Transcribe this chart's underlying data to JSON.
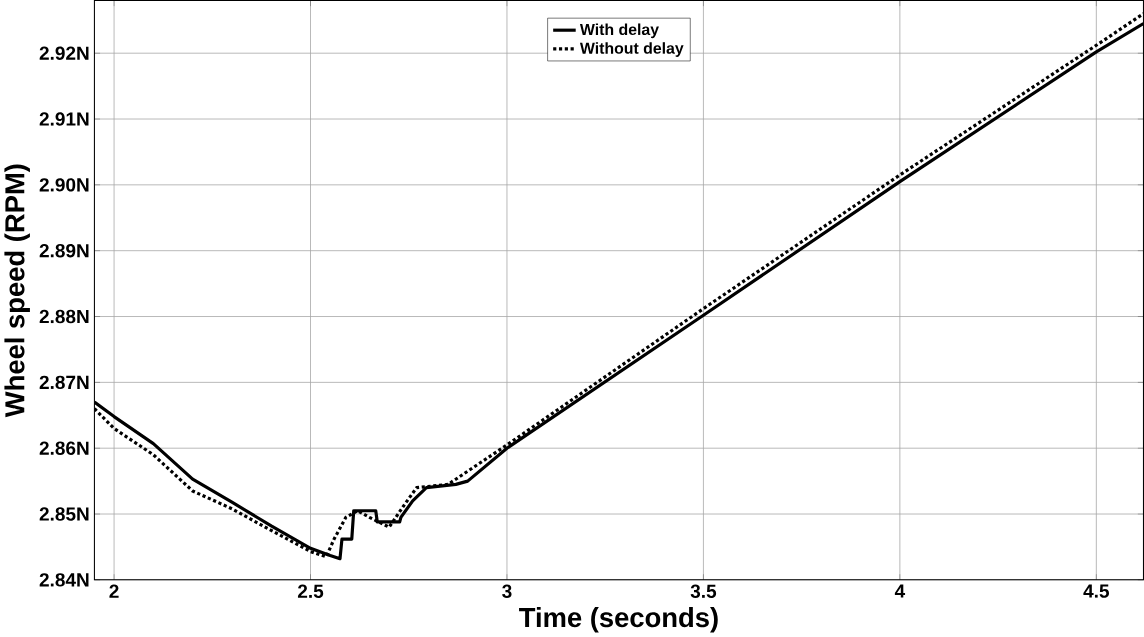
{
  "chart_data": {
    "type": "line",
    "xlabel": "Time (seconds)",
    "ylabel": "Wheel speed (RPM)",
    "xlim": [
      1.95,
      4.62
    ],
    "ylim": [
      2.84,
      2.928
    ],
    "xticks": [
      2,
      2.5,
      3,
      3.5,
      4,
      4.5
    ],
    "yticks": [
      {
        "value": 2.84,
        "label": "2.84N"
      },
      {
        "value": 2.85,
        "label": "2.85N"
      },
      {
        "value": 2.86,
        "label": "2.86N"
      },
      {
        "value": 2.87,
        "label": "2.87N"
      },
      {
        "value": 2.88,
        "label": "2.88N"
      },
      {
        "value": 2.89,
        "label": "2.89N"
      },
      {
        "value": 2.9,
        "label": "2.90N"
      },
      {
        "value": 2.91,
        "label": "2.91N"
      },
      {
        "value": 2.92,
        "label": "2.92N"
      }
    ],
    "grid": true,
    "legend": "top",
    "series": [
      {
        "name": "With delay",
        "color": "#000000",
        "line_style": "solid",
        "x": [
          1.95,
          2.0,
          2.1,
          2.2,
          2.3,
          2.4,
          2.5,
          2.55,
          2.575,
          2.58,
          2.605,
          2.61,
          2.666,
          2.67,
          2.727,
          2.73,
          2.76,
          2.795,
          2.87,
          2.9,
          3.0,
          3.5,
          4.0,
          4.5,
          4.62
        ],
        "values": [
          2.867,
          2.8648,
          2.8607,
          2.8553,
          2.8518,
          2.8482,
          2.8448,
          2.8437,
          2.8432,
          2.8462,
          2.8462,
          2.8505,
          2.8505,
          2.8488,
          2.8488,
          2.8495,
          2.852,
          2.854,
          2.8545,
          2.855,
          2.86,
          2.8802,
          2.9005,
          2.9202,
          2.9245
        ]
      },
      {
        "name": "Without delay",
        "color": "#000000",
        "line_style": "dotted",
        "x": [
          1.95,
          2.0,
          2.1,
          2.2,
          2.3,
          2.4,
          2.5,
          2.54,
          2.56,
          2.59,
          2.62,
          2.65,
          2.7,
          2.74,
          2.77,
          2.85,
          2.9,
          3.0,
          3.5,
          4.0,
          4.5,
          4.62
        ],
        "values": [
          2.866,
          2.863,
          2.859,
          2.8535,
          2.8508,
          2.8475,
          2.8443,
          2.8435,
          2.8462,
          2.8495,
          2.8505,
          2.8495,
          2.848,
          2.8515,
          2.854,
          2.8545,
          2.8565,
          2.8605,
          2.8812,
          2.9015,
          2.9212,
          2.926
        ]
      }
    ]
  }
}
